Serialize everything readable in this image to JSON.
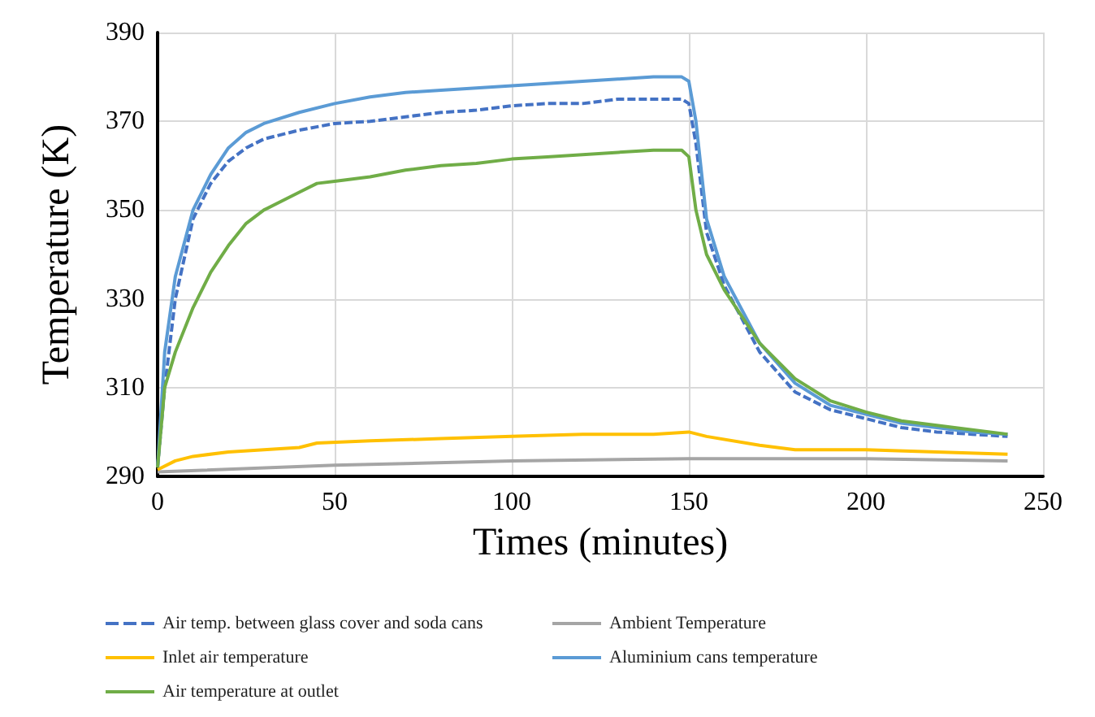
{
  "chart_data": {
    "type": "line",
    "xlabel": "Times (minutes)",
    "ylabel": "Temperature (K)",
    "xlim": [
      0,
      250
    ],
    "xticks": [
      0,
      50,
      100,
      150,
      200,
      250
    ],
    "ylim": [
      290,
      390
    ],
    "yticks": [
      290,
      310,
      330,
      350,
      370,
      390
    ],
    "grid": true,
    "legend": "bottom",
    "marker": "none",
    "series": [
      {
        "name": "Air temp. between glass cover and soda cans",
        "color": "#4472c4",
        "line_style": "dashed",
        "x": [
          0,
          2,
          5,
          10,
          15,
          20,
          25,
          30,
          40,
          50,
          60,
          70,
          80,
          90,
          100,
          110,
          120,
          130,
          140,
          148,
          150,
          152,
          155,
          160,
          170,
          180,
          190,
          200,
          210,
          220,
          230,
          240
        ],
        "values": [
          292,
          310,
          330,
          348,
          356,
          361,
          364,
          366,
          368,
          369.5,
          370,
          371,
          372,
          372.5,
          373.5,
          374,
          374,
          375,
          375,
          375,
          374,
          365,
          345,
          333,
          318,
          309,
          305,
          303,
          301,
          300,
          299.5,
          299
        ]
      },
      {
        "name": "Ambient Temperature",
        "color": "#a5a5a5",
        "line_style": "solid",
        "x": [
          0,
          50,
          100,
          150,
          200,
          240
        ],
        "values": [
          291,
          292.5,
          293.5,
          294,
          294,
          293.5
        ]
      },
      {
        "name": "Inlet air temperature",
        "color": "#ffc000",
        "line_style": "solid",
        "x": [
          0,
          5,
          10,
          20,
          30,
          40,
          45,
          60,
          80,
          100,
          120,
          140,
          150,
          155,
          170,
          180,
          200,
          220,
          240
        ],
        "values": [
          291.5,
          293.5,
          294.5,
          295.5,
          296,
          296.5,
          297.5,
          298,
          298.5,
          299,
          299.5,
          299.5,
          300,
          299,
          297,
          296,
          296,
          295.5,
          295
        ]
      },
      {
        "name": "Aluminium cans temperature",
        "color": "#5b9bd5",
        "line_style": "solid",
        "x": [
          0,
          2,
          5,
          10,
          15,
          20,
          25,
          30,
          40,
          50,
          60,
          70,
          80,
          90,
          100,
          110,
          120,
          130,
          140,
          148,
          150,
          152,
          155,
          160,
          170,
          180,
          190,
          200,
          210,
          220,
          230,
          240
        ],
        "values": [
          292,
          318,
          335,
          350,
          358,
          364,
          367.5,
          369.5,
          372,
          374,
          375.5,
          376.5,
          377,
          377.5,
          378,
          378.5,
          379,
          379.5,
          380,
          380,
          379,
          370,
          348,
          335,
          320,
          311,
          306,
          304,
          302,
          301,
          300,
          299.5
        ]
      },
      {
        "name": "Air temperature at outlet",
        "color": "#70ad47",
        "line_style": "solid",
        "x": [
          0,
          2,
          5,
          10,
          15,
          20,
          25,
          30,
          40,
          45,
          50,
          60,
          70,
          80,
          90,
          100,
          110,
          120,
          130,
          140,
          148,
          150,
          152,
          155,
          160,
          170,
          180,
          190,
          200,
          210,
          220,
          230,
          240
        ],
        "values": [
          292,
          310,
          318,
          328,
          336,
          342,
          347,
          350,
          354,
          356,
          356.5,
          357.5,
          359,
          360,
          360.5,
          361.5,
          362,
          362.5,
          363,
          363.5,
          363.5,
          362,
          350,
          340,
          332,
          320,
          312,
          307,
          304.5,
          302.5,
          301.5,
          300.5,
          299.5
        ]
      }
    ]
  }
}
